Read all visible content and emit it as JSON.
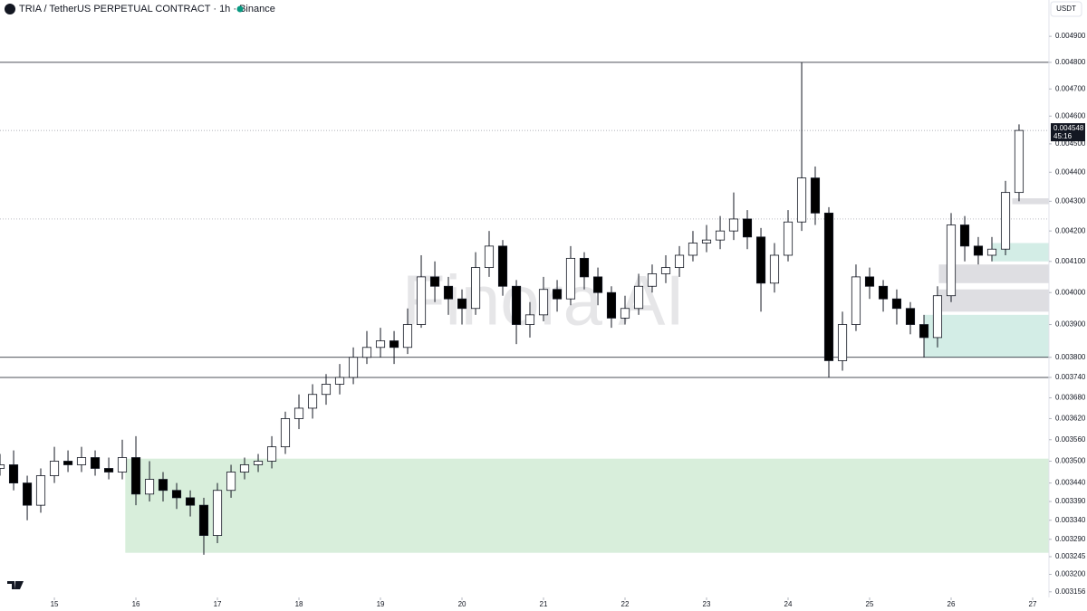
{
  "chart_data": {
    "type": "candlestick",
    "title": "TRIA / TetherUS PERPETUAL CONTRACT · 1h · Binance",
    "currency": "USDT",
    "watermark": "Finora AI",
    "countdown": "45:16",
    "log_scale": true,
    "up_color": "#ffffff",
    "down_color": "#000000",
    "xlim": [
      14.333,
      27.2
    ],
    "xticks": [
      15,
      16,
      17,
      18,
      19,
      20,
      21,
      22,
      23,
      24,
      25,
      26,
      27
    ],
    "ylim": [
      0.003142,
      0.005043
    ],
    "yticks": [
      {
        "value": 0.0049,
        "label": "0.004900"
      },
      {
        "value": 0.0048,
        "label": "0.004800"
      },
      {
        "value": 0.0047,
        "label": "0.004700"
      },
      {
        "value": 0.0046,
        "label": "0.004600"
      },
      {
        "value": 0.0045,
        "label": "0.004500"
      },
      {
        "value": 0.0044,
        "label": "0.004400"
      },
      {
        "value": 0.0043,
        "label": "0.004300"
      },
      {
        "value": 0.0042,
        "label": "0.004200"
      },
      {
        "value": 0.0041,
        "label": "0.004100"
      },
      {
        "value": 0.004,
        "label": "0.004000"
      },
      {
        "value": 0.0039,
        "label": "0.003900"
      },
      {
        "value": 0.0038,
        "label": "0.003800"
      },
      {
        "value": 0.00374,
        "label": "0.003740"
      },
      {
        "value": 0.00368,
        "label": "0.003680"
      },
      {
        "value": 0.00362,
        "label": "0.003620"
      },
      {
        "value": 0.00356,
        "label": "0.003560"
      },
      {
        "value": 0.0035,
        "label": "0.003500"
      },
      {
        "value": 0.00344,
        "label": "0.003440"
      },
      {
        "value": 0.00339,
        "label": "0.003390"
      },
      {
        "value": 0.00334,
        "label": "0.003340"
      },
      {
        "value": 0.00329,
        "label": "0.003290"
      },
      0.003245,
      {
        "value": 0.0032,
        "label": "0.003200"
      },
      0.003156
    ],
    "x": [
      14.333,
      14.5,
      14.667,
      14.833,
      15,
      15.167,
      15.333,
      15.5,
      15.667,
      15.833,
      16,
      16.167,
      16.333,
      16.5,
      16.667,
      16.833,
      17,
      17.167,
      17.333,
      17.5,
      17.667,
      17.833,
      18,
      18.167,
      18.333,
      18.5,
      18.667,
      18.833,
      19,
      19.167,
      19.333,
      19.5,
      19.667,
      19.833,
      20,
      20.167,
      20.333,
      20.5,
      20.667,
      20.833,
      21,
      21.167,
      21.333,
      21.5,
      21.667,
      21.833,
      22,
      22.167,
      22.333,
      22.5,
      22.667,
      22.833,
      23,
      23.167,
      23.333,
      23.5,
      23.667,
      23.833,
      24,
      24.167,
      24.333,
      24.5,
      24.667,
      24.833,
      25,
      25.167,
      25.333,
      25.5,
      25.667,
      25.833,
      26,
      26.167,
      26.333,
      26.5,
      26.667,
      26.833
    ],
    "open": [
      0.00348,
      0.00349,
      0.00344,
      0.00338,
      0.00346,
      0.0035,
      0.00349,
      0.00351,
      0.00348,
      0.00347,
      0.00351,
      0.00341,
      0.00345,
      0.00342,
      0.0034,
      0.00338,
      0.0033,
      0.00342,
      0.00347,
      0.00349,
      0.0035,
      0.00354,
      0.00362,
      0.00365,
      0.00369,
      0.00372,
      0.00374,
      0.0038,
      0.00383,
      0.00385,
      0.00383,
      0.0039,
      0.00405,
      0.00402,
      0.00398,
      0.00395,
      0.00408,
      0.00415,
      0.00402,
      0.0039,
      0.00393,
      0.00401,
      0.00398,
      0.00411,
      0.00405,
      0.004,
      0.00392,
      0.00395,
      0.00402,
      0.00406,
      0.00408,
      0.00412,
      0.00416,
      0.00417,
      0.0042,
      0.00424,
      0.00418,
      0.00403,
      0.00412,
      0.00423,
      0.00438,
      0.00426,
      0.00379,
      0.0039,
      0.00405,
      0.00402,
      0.00398,
      0.00395,
      0.0039,
      0.00386,
      0.00399,
      0.00422,
      0.00415,
      0.00412,
      0.00414,
      0.00433
    ],
    "high": [
      0.00352,
      0.00353,
      0.00346,
      0.00348,
      0.00354,
      0.00353,
      0.00354,
      0.00353,
      0.00351,
      0.00356,
      0.00357,
      0.0035,
      0.00347,
      0.00344,
      0.00342,
      0.0034,
      0.00344,
      0.00349,
      0.00351,
      0.00352,
      0.00357,
      0.00364,
      0.00369,
      0.00372,
      0.00375,
      0.00378,
      0.00383,
      0.00388,
      0.00389,
      0.00388,
      0.00395,
      0.00412,
      0.0041,
      0.00405,
      0.00401,
      0.00413,
      0.0042,
      0.00417,
      0.00404,
      0.00397,
      0.00405,
      0.00404,
      0.00415,
      0.00413,
      0.00408,
      0.00402,
      0.00399,
      0.00406,
      0.00409,
      0.00412,
      0.00415,
      0.0042,
      0.00422,
      0.00425,
      0.00433,
      0.00427,
      0.00421,
      0.00416,
      0.00427,
      0.0048,
      0.00442,
      0.00428,
      0.00394,
      0.00409,
      0.00408,
      0.00404,
      0.00401,
      0.00397,
      0.00393,
      0.00402,
      0.00426,
      0.00425,
      0.00418,
      0.00418,
      0.00437,
      0.00457
    ],
    "low": [
      0.00346,
      0.00342,
      0.00334,
      0.00336,
      0.00344,
      0.00347,
      0.00347,
      0.00346,
      0.00345,
      0.00345,
      0.00338,
      0.00339,
      0.00339,
      0.00337,
      0.00335,
      0.00325,
      0.00328,
      0.0034,
      0.00345,
      0.00347,
      0.00348,
      0.00352,
      0.00359,
      0.00362,
      0.00366,
      0.00369,
      0.00372,
      0.00378,
      0.0038,
      0.00378,
      0.00381,
      0.00389,
      0.00397,
      0.00393,
      0.0039,
      0.00393,
      0.00405,
      0.00399,
      0.00384,
      0.00386,
      0.00391,
      0.00394,
      0.00396,
      0.00401,
      0.00396,
      0.00389,
      0.0039,
      0.00393,
      0.004,
      0.00403,
      0.00405,
      0.0041,
      0.00413,
      0.00414,
      0.00417,
      0.00414,
      0.00394,
      0.004,
      0.0041,
      0.0042,
      0.00422,
      0.00374,
      0.00376,
      0.00388,
      0.00398,
      0.00394,
      0.0039,
      0.00387,
      0.0038,
      0.00383,
      0.00397,
      0.0041,
      0.00409,
      0.0041,
      0.00412,
      0.0043
    ],
    "close": [
      0.00349,
      0.00344,
      0.00338,
      0.00346,
      0.0035,
      0.00349,
      0.00351,
      0.00348,
      0.00347,
      0.00351,
      0.00341,
      0.00345,
      0.00342,
      0.0034,
      0.00338,
      0.0033,
      0.00342,
      0.00347,
      0.00349,
      0.0035,
      0.00354,
      0.00362,
      0.00365,
      0.00369,
      0.00372,
      0.00374,
      0.0038,
      0.00383,
      0.00385,
      0.00383,
      0.0039,
      0.00405,
      0.00402,
      0.00398,
      0.00395,
      0.00408,
      0.00415,
      0.00402,
      0.0039,
      0.00393,
      0.00401,
      0.00398,
      0.00411,
      0.00405,
      0.004,
      0.00392,
      0.00395,
      0.00402,
      0.00406,
      0.00408,
      0.00412,
      0.00416,
      0.00417,
      0.0042,
      0.00424,
      0.00418,
      0.00403,
      0.00412,
      0.00423,
      0.00438,
      0.00426,
      0.00379,
      0.0039,
      0.00405,
      0.00402,
      0.00398,
      0.00395,
      0.0039,
      0.00386,
      0.00399,
      0.00422,
      0.00415,
      0.00412,
      0.00414,
      0.00433,
      0.004548
    ],
    "levels": [
      {
        "value": 0.0048,
        "style": "solid"
      },
      {
        "value": 0.004548,
        "style": "dotted"
      },
      {
        "value": 0.00424,
        "style": "dotted"
      },
      {
        "value": 0.0038,
        "style": "solid"
      },
      {
        "value": 0.00374,
        "style": "solid"
      }
    ],
    "zones": [
      {
        "x0": 15.87,
        "y0": 0.003255,
        "y1": 0.003507,
        "color": "#d8eedb"
      },
      {
        "x0": 25.67,
        "y0": 0.0038,
        "y1": 0.00393,
        "color": "#d3ede6"
      },
      {
        "x0": 26.5,
        "y0": 0.0041,
        "y1": 0.00416,
        "color": "#d3ede6"
      },
      {
        "x0": 25.85,
        "y0": 0.00403,
        "y1": 0.00409,
        "color": "#dedee2"
      },
      {
        "x0": 25.85,
        "y0": 0.00394,
        "y1": 0.00401,
        "color": "#dedee2"
      },
      {
        "x0": 26.75,
        "y0": 0.00429,
        "y1": 0.00431,
        "color": "#dedee2"
      }
    ]
  }
}
